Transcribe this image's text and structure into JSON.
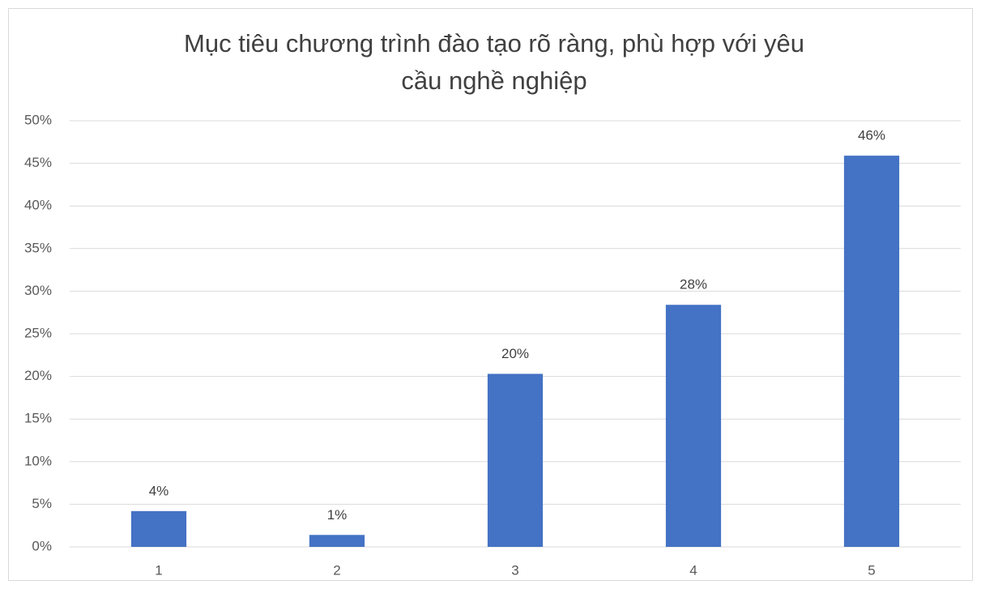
{
  "chart_data": {
    "type": "bar",
    "title": [
      "Mục tiêu chương trình đào tạo rõ ràng, phù hợp với yêu",
      "cầu nghề nghiệp"
    ],
    "categories": [
      "1",
      "2",
      "3",
      "4",
      "5"
    ],
    "values": [
      4.2,
      1.4,
      20.3,
      28.4,
      45.9
    ],
    "value_labels": [
      "4%",
      "1%",
      "20%",
      "28%",
      "46%"
    ],
    "color": "#4472c4",
    "ylim": [
      0,
      50
    ],
    "yticks": [
      {
        "value": 0,
        "label": "0%"
      },
      {
        "value": 5,
        "label": "5%"
      },
      {
        "value": 10,
        "label": "10%"
      },
      {
        "value": 15,
        "label": "15%"
      },
      {
        "value": 20,
        "label": "20%"
      },
      {
        "value": 25,
        "label": "25%"
      },
      {
        "value": 30,
        "label": "30%"
      },
      {
        "value": 35,
        "label": "35%"
      },
      {
        "value": 40,
        "label": "40%"
      },
      {
        "value": 45,
        "label": "45%"
      },
      {
        "value": 50,
        "label": "50%"
      }
    ],
    "grid": true
  }
}
